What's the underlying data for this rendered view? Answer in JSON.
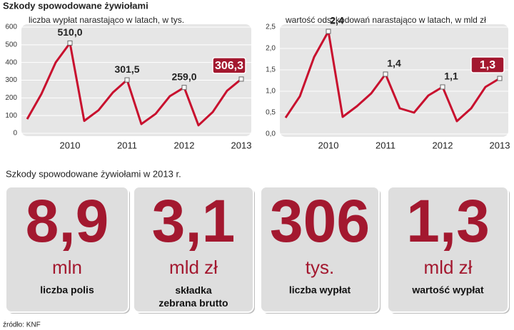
{
  "title": "Szkody spowodowane żywiołami",
  "chart_data": [
    {
      "type": "line",
      "title": "liczba wypłat narastająco w latach, w tys.",
      "categories": [
        null,
        null,
        null,
        "2010",
        null,
        null,
        null,
        "2011",
        null,
        null,
        null,
        "2012",
        null,
        null,
        null,
        "2013"
      ],
      "values": [
        80,
        222,
        400,
        510,
        70,
        130,
        230,
        301.5,
        52,
        110,
        210,
        259,
        45,
        120,
        240,
        306.3
      ],
      "value_labels": [
        null,
        null,
        null,
        "510,0",
        null,
        null,
        null,
        "301,5",
        null,
        null,
        null,
        "259,0",
        null,
        null,
        null,
        "306,3"
      ],
      "color": "#c8102e",
      "ylim": [
        0,
        600
      ],
      "yticks": [
        0,
        100,
        200,
        300,
        400,
        500,
        600
      ],
      "grid": true
    },
    {
      "type": "line",
      "title": "wartość odszkodowań narastająco w latach, w mld zł",
      "categories": [
        null,
        null,
        null,
        "2010",
        null,
        null,
        null,
        "2011",
        null,
        null,
        null,
        "2012",
        null,
        null,
        null,
        "2013"
      ],
      "values": [
        0.38,
        0.88,
        1.8,
        2.4,
        0.4,
        0.65,
        0.95,
        1.4,
        0.6,
        0.5,
        0.9,
        1.1,
        0.3,
        0.6,
        1.1,
        1.3
      ],
      "value_labels": [
        null,
        null,
        null,
        "2,4",
        null,
        null,
        null,
        "1,4",
        null,
        null,
        null,
        "1,1",
        null,
        null,
        null,
        "1,3"
      ],
      "color": "#c8102e",
      "ylim": [
        0,
        2.5
      ],
      "yticks": [
        {
          "value": 0,
          "label": "0,0"
        },
        {
          "value": 0.5,
          "label": "0,5"
        },
        {
          "value": 1,
          "label": "1,0"
        },
        {
          "value": 1.5,
          "label": "1,5"
        },
        {
          "value": 2,
          "label": "2,0"
        },
        {
          "value": 2.5,
          "label": "2,5"
        }
      ],
      "grid": true
    }
  ],
  "stats_title": "Szkody spowodowane żywiołami w 2013 r.",
  "stats": [
    {
      "number": "8,9",
      "unit": "mln",
      "label": "liczba polis"
    },
    {
      "number": "3,1",
      "unit": "mld zł",
      "label": "składka zebrana brutto"
    },
    {
      "number": "306",
      "unit": "tys.",
      "label": "liczba wypłat"
    },
    {
      "number": "1,3",
      "unit": "mld zł",
      "label": "wartość wypłat"
    }
  ],
  "source": "źródło: KNF"
}
